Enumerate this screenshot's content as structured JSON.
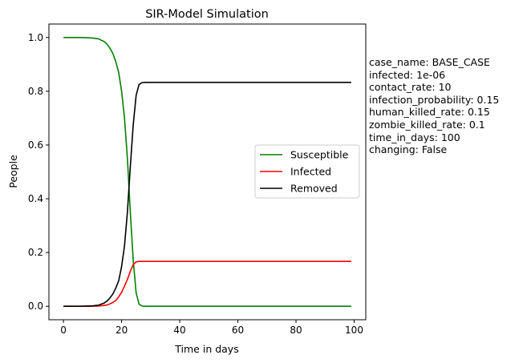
{
  "chart_data": {
    "type": "line",
    "title": "SIR-Model Simulation",
    "xlabel": "Time in days",
    "ylabel": "People",
    "xlim": [
      -5,
      104
    ],
    "ylim": [
      -0.05,
      1.05
    ],
    "xticks": [
      0,
      20,
      40,
      60,
      80,
      100
    ],
    "yticks": [
      0.0,
      0.2,
      0.4,
      0.6,
      0.8,
      1.0
    ],
    "xtick_labels": [
      "0",
      "20",
      "40",
      "60",
      "80",
      "100"
    ],
    "ytick_labels": [
      "0.0",
      "0.2",
      "0.4",
      "0.6",
      "0.8",
      "1.0"
    ],
    "grid": false,
    "legend_position": "center-right",
    "x": [
      0,
      2,
      4,
      6,
      8,
      10,
      12,
      14,
      15,
      16,
      17,
      18,
      19,
      20,
      21,
      22,
      23,
      24,
      25,
      26,
      27,
      28,
      30,
      35,
      40,
      50,
      60,
      70,
      80,
      90,
      99
    ],
    "series": [
      {
        "name": "Susceptible",
        "color": "#008000",
        "values": [
          1.0,
          1.0,
          1.0,
          1.0,
          0.999,
          0.998,
          0.995,
          0.985,
          0.975,
          0.96,
          0.94,
          0.91,
          0.87,
          0.8,
          0.7,
          0.55,
          0.35,
          0.17,
          0.05,
          0.008,
          0.001,
          0.0,
          0.0,
          0.0,
          0.0,
          0.0,
          0.0,
          0.0,
          0.0,
          0.0,
          0.0
        ]
      },
      {
        "name": "Infected",
        "color": "#ff0000",
        "values": [
          0.0,
          0.0,
          0.0,
          0.0,
          0.0,
          0.0005,
          0.001,
          0.003,
          0.005,
          0.009,
          0.014,
          0.022,
          0.035,
          0.052,
          0.075,
          0.1,
          0.13,
          0.155,
          0.165,
          0.167,
          0.167,
          0.167,
          0.167,
          0.167,
          0.167,
          0.167,
          0.167,
          0.167,
          0.167,
          0.167,
          0.167
        ]
      },
      {
        "name": "Removed",
        "color": "#000000",
        "values": [
          0.0,
          0.0,
          0.0,
          0.0,
          0.001,
          0.0015,
          0.004,
          0.012,
          0.02,
          0.031,
          0.046,
          0.068,
          0.095,
          0.148,
          0.225,
          0.35,
          0.52,
          0.675,
          0.785,
          0.825,
          0.832,
          0.833,
          0.833,
          0.833,
          0.833,
          0.833,
          0.833,
          0.833,
          0.833,
          0.833,
          0.833
        ]
      }
    ]
  },
  "params": [
    "case_name: BASE_CASE",
    "infected: 1e-06",
    "contact_rate: 10",
    "infection_probability: 0.15",
    "human_killed_rate: 0.15",
    "zombie_killed_rate: 0.1",
    "time_in_days: 100",
    "changing: False"
  ]
}
